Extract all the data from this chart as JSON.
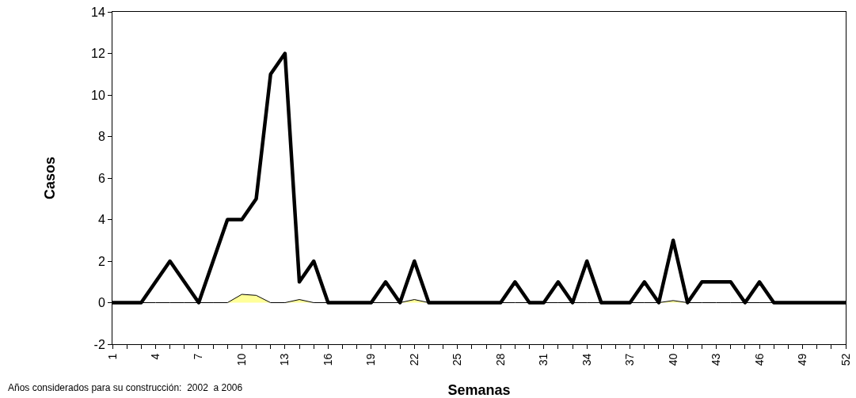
{
  "chart_data": {
    "type": "line",
    "xlabel": "Semanas",
    "ylabel": "Casos",
    "annotations": [
      "Años considerados para su construcción:  2002  a 2006"
    ],
    "x": [
      1,
      2,
      3,
      4,
      5,
      6,
      7,
      8,
      9,
      10,
      11,
      12,
      13,
      14,
      15,
      16,
      17,
      18,
      19,
      20,
      21,
      22,
      23,
      24,
      25,
      26,
      27,
      28,
      29,
      30,
      31,
      32,
      33,
      34,
      35,
      36,
      37,
      38,
      39,
      40,
      41,
      42,
      43,
      44,
      45,
      46,
      47,
      48,
      49,
      50,
      51,
      52
    ],
    "series": [
      {
        "type": "area",
        "color": "#ffff99",
        "values": [
          0,
          0,
          0,
          0,
          0,
          0,
          0,
          0,
          0,
          0.4,
          0.35,
          0,
          0,
          0.15,
          0,
          0,
          0,
          0,
          0,
          0,
          0,
          0.15,
          0,
          0,
          0,
          0,
          0,
          0,
          0,
          0,
          0,
          0,
          0,
          0,
          0,
          0,
          0,
          0,
          0,
          0.1,
          0,
          0,
          0,
          0,
          0,
          0,
          0,
          0,
          0,
          0,
          0,
          0
        ]
      },
      {
        "color": "#000000",
        "values": [
          0,
          0,
          0,
          1,
          2,
          1,
          0,
          2,
          4,
          4,
          5,
          11,
          12,
          1,
          2,
          0,
          0,
          0,
          0,
          1,
          0,
          2,
          0,
          0,
          0,
          0,
          0,
          0,
          1,
          0,
          0,
          1,
          0,
          2,
          0,
          0,
          0,
          1,
          0,
          3,
          0,
          1,
          1,
          1,
          0,
          1,
          0,
          0,
          0,
          0,
          0,
          0
        ]
      }
    ],
    "xlim": [
      1,
      52
    ],
    "xticks": [
      1,
      {
        "value": 2,
        "label": null
      },
      {
        "value": 3,
        "label": null
      },
      4,
      {
        "value": 5,
        "label": null
      },
      {
        "value": 6,
        "label": null
      },
      7,
      {
        "value": 8,
        "label": null
      },
      {
        "value": 9,
        "label": null
      },
      10,
      {
        "value": 11,
        "label": null
      },
      {
        "value": 12,
        "label": null
      },
      13,
      {
        "value": 14,
        "label": null
      },
      {
        "value": 15,
        "label": null
      },
      16,
      {
        "value": 17,
        "label": null
      },
      {
        "value": 18,
        "label": null
      },
      19,
      {
        "value": 20,
        "label": null
      },
      {
        "value": 21,
        "label": null
      },
      22,
      {
        "value": 23,
        "label": null
      },
      {
        "value": 24,
        "label": null
      },
      25,
      {
        "value": 26,
        "label": null
      },
      {
        "value": 27,
        "label": null
      },
      28,
      {
        "value": 29,
        "label": null
      },
      {
        "value": 30,
        "label": null
      },
      31,
      {
        "value": 32,
        "label": null
      },
      {
        "value": 33,
        "label": null
      },
      34,
      {
        "value": 35,
        "label": null
      },
      {
        "value": 36,
        "label": null
      },
      37,
      {
        "value": 38,
        "label": null
      },
      {
        "value": 39,
        "label": null
      },
      40,
      {
        "value": 41,
        "label": null
      },
      {
        "value": 42,
        "label": null
      },
      43,
      {
        "value": 44,
        "label": null
      },
      {
        "value": 45,
        "label": null
      },
      46,
      {
        "value": 47,
        "label": null
      },
      {
        "value": 48,
        "label": null
      },
      49,
      {
        "value": 50,
        "label": null
      },
      {
        "value": 51,
        "label": null
      },
      52
    ],
    "ylim": [
      -2,
      14
    ],
    "yticks": [
      -2,
      0,
      2,
      4,
      6,
      8,
      10,
      12,
      14
    ],
    "grid": false,
    "marker": "none",
    "line_style": "solid"
  }
}
